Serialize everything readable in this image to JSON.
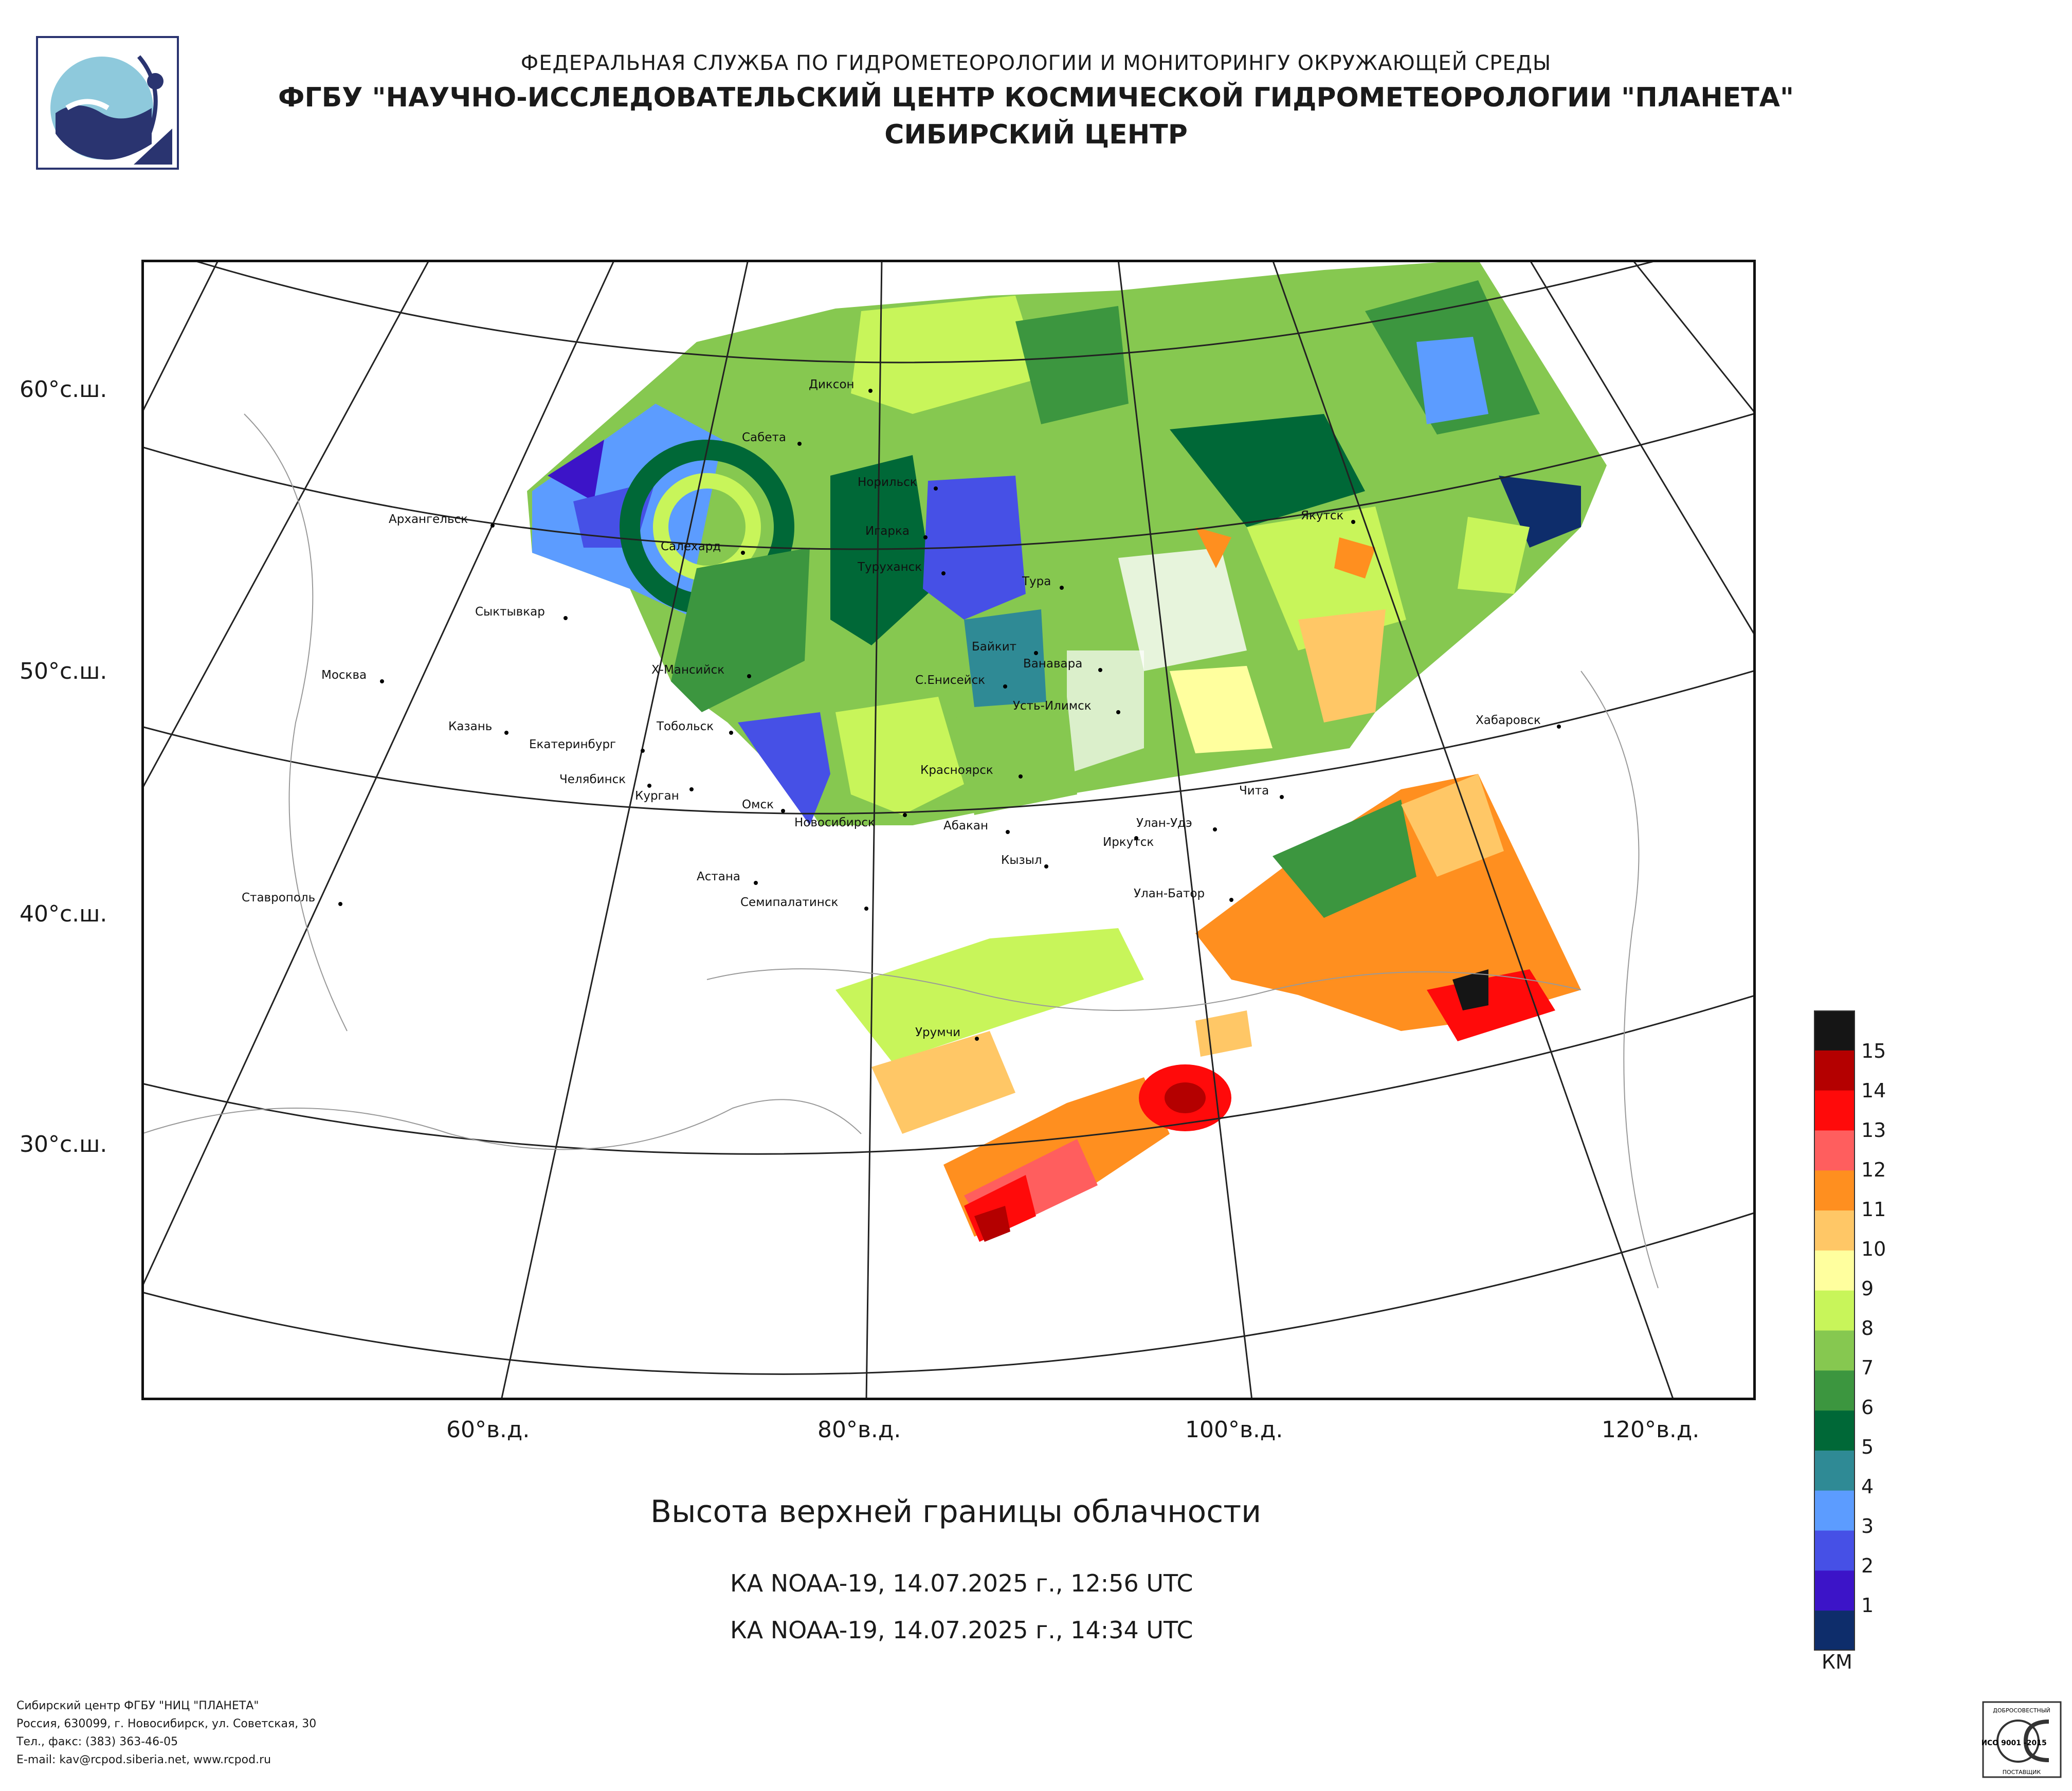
{
  "header": {
    "agency": "ФЕДЕРАЛЬНАЯ СЛУЖБА ПО ГИДРОМЕТЕОРОЛОГИИ И МОНИТОРИНГУ ОКРУЖАЮЩЕЙ СРЕДЫ",
    "center": "ФГБУ \"НАУЧНО-ИССЛЕДОВАТЕЛЬСКИЙ ЦЕНТР КОСМИЧЕСКОЙ ГИДРОМЕТЕОРОЛОГИИ \"ПЛАНЕТА\"",
    "branch": "СИБИРСКИЙ ЦЕНТР"
  },
  "map": {
    "lat_labels": [
      "60°с.ш.",
      "50°с.ш.",
      "40°с.ш.",
      "30°с.ш."
    ],
    "lon_labels": [
      "60°в.д.",
      "80°в.д.",
      "100°в.д.",
      "120°в.д."
    ],
    "cities": [
      "Диксон",
      "Сабета",
      "Норильск",
      "Игарка",
      "Туруханск",
      "Тура",
      "Якутск",
      "Архангельск",
      "Салехард",
      "Сыктывкар",
      "Байкит",
      "Ванавара",
      "Москва",
      "Х-Мансийск",
      "С.Енисейск",
      "Усть-Илимск",
      "Хабаровск",
      "Казань",
      "Тобольск",
      "Екатеринбург",
      "Челябинск",
      "Курган",
      "Красноярск",
      "Чита",
      "Омск",
      "Новосибирск",
      "Абакан",
      "Улан-Удэ",
      "Иркутск",
      "Кызыл",
      "Астана",
      "Семипалатинск",
      "Улан-Батор",
      "Ставрополь",
      "Урумчи"
    ]
  },
  "product": {
    "title": "Высота верхней границы облачности",
    "passes": [
      "КА NOAA-19, 14.07.2025 г., 12:56 UTC",
      "КА NOAA-19, 14.07.2025 г., 14:34 UTC"
    ]
  },
  "legend": {
    "units": "КМ",
    "labels": [
      "15",
      "14",
      "13",
      "12",
      "11",
      "10",
      "9",
      "8",
      "7",
      "6",
      "5",
      "4",
      "3",
      "2",
      "1"
    ],
    "colors": [
      "#151515",
      "#b40000",
      "#ff0a0a",
      "#ff5e5e",
      "#ff8f1f",
      "#ffc766",
      "#ffff9e",
      "#c8f55a",
      "#86c850",
      "#3c963f",
      "#006837",
      "#2f8a95",
      "#5c9cff",
      "#4650e6",
      "#3c14c8",
      "#0e2d6b"
    ]
  },
  "footer": {
    "line1": "Сибирский центр ФГБУ \"НИЦ \"ПЛАНЕТА\"",
    "line2": "Россия, 630099, г. Новосибирск, ул. Советская, 30",
    "line3": "Тел., факс: (383) 363-46-05",
    "line4": "E-mail: kav@rcpod.siberia.net, www.rcpod.ru"
  },
  "certificate": {
    "top": "ДОБРОСОВЕСТНЫЙ",
    "mark": "ИСО 9001 -2015",
    "bottom": "ПОСТАВЩИК"
  },
  "logo": "planeta-logo"
}
